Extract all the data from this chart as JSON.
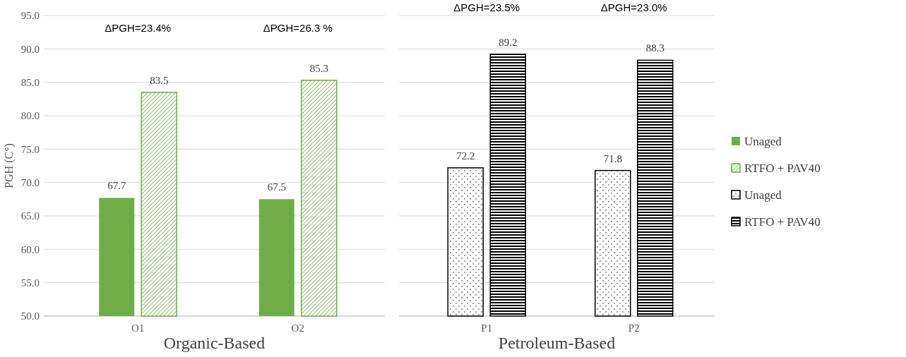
{
  "chart_data": [
    {
      "type": "bar",
      "ylabel": "PGH (C°)",
      "xlabel": "Organic-Based",
      "categories": [
        "O1",
        "O2"
      ],
      "ylim": [
        50,
        95
      ],
      "yticks": [
        "50.0",
        "55.0",
        "60.0",
        "65.0",
        "70.0",
        "75.0",
        "80.0",
        "85.0",
        "90.0",
        "95.0"
      ],
      "grid": "y",
      "legend": "right",
      "data_labels": true,
      "series": [
        {
          "name": "Unaged",
          "color": "#70ad47",
          "values": [
            67.7,
            67.5
          ]
        },
        {
          "name": "RTFO + PAV40",
          "color": "#70ad47",
          "values": [
            83.5,
            85.3
          ]
        }
      ],
      "annotations": [
        "ΔPGH=23.4%",
        "ΔPGH=26.3 %"
      ]
    },
    {
      "type": "bar",
      "xlabel": "Petroleum-Based",
      "categories": [
        "P1",
        "P2"
      ],
      "ylim": [
        50,
        95
      ],
      "yticks": [
        50,
        55,
        60,
        65,
        70,
        75,
        80,
        85,
        90,
        95
      ],
      "grid": "y",
      "legend": "right",
      "data_labels": true,
      "tick_labels": "x",
      "series": [
        {
          "name": "Unaged",
          "color": "#000000",
          "values": [
            72.2,
            71.8
          ]
        },
        {
          "name": "RTFO + PAV40",
          "color": "#000000",
          "values": [
            89.2,
            88.3
          ]
        }
      ],
      "annotations": [
        "ΔPGH=23.5%",
        "ΔPGH=23.0%"
      ]
    }
  ]
}
